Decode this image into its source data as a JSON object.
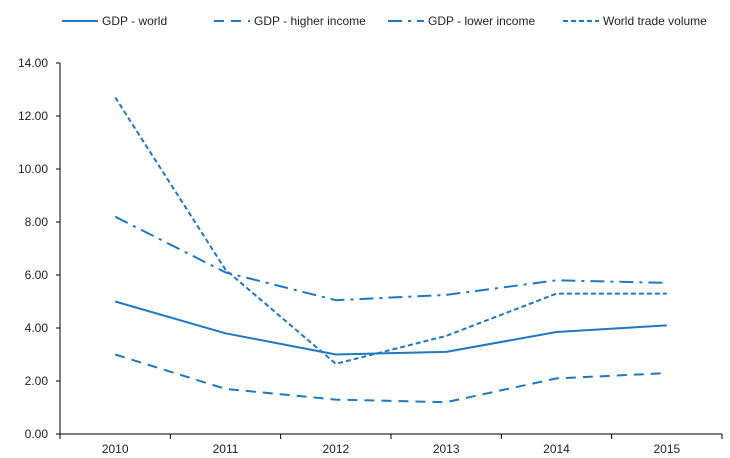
{
  "chart_data": {
    "type": "line",
    "title": "",
    "xlabel": "",
    "ylabel": "",
    "x": [
      "2010",
      "2011",
      "2012",
      "2013",
      "2014",
      "2015"
    ],
    "ylim": [
      0,
      14
    ],
    "yticks": [
      "0.00",
      "2.00",
      "4.00",
      "6.00",
      "8.00",
      "10.00",
      "12.00",
      "14.00"
    ],
    "grid": false,
    "legend_position": "top",
    "series": [
      {
        "name": "GDP - world",
        "style": "solid",
        "color": "#1f78c1",
        "values": [
          5.0,
          3.8,
          3.0,
          3.1,
          3.85,
          4.1
        ]
      },
      {
        "name": "GDP - higher income",
        "style": "dashed",
        "color": "#1f78c1",
        "values": [
          3.0,
          1.7,
          1.3,
          1.2,
          2.1,
          2.3
        ]
      },
      {
        "name": "GDP - lower income",
        "style": "dashdot",
        "color": "#1f78c1",
        "values": [
          8.2,
          6.1,
          5.05,
          5.25,
          5.8,
          5.7
        ]
      },
      {
        "name": "World trade volume",
        "style": "shortdash",
        "color": "#1f78c1",
        "values": [
          12.7,
          6.2,
          2.65,
          3.7,
          5.3,
          5.3
        ]
      }
    ]
  }
}
